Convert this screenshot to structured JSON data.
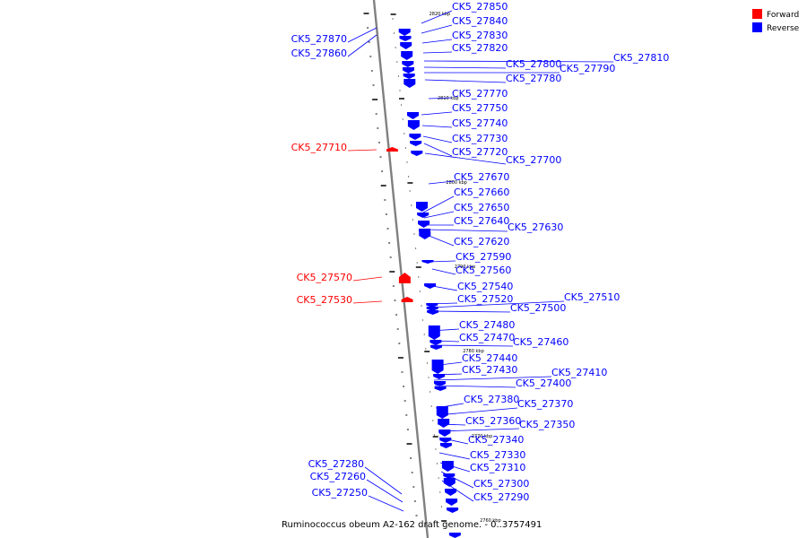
{
  "caption": "Ruminococcus obeum A2-162 draft genome. - 0..3757491",
  "colors": {
    "forward": "#ff0000",
    "reverse": "#0000ff",
    "backbone": "#808080"
  },
  "legend": [
    {
      "label": "Forward",
      "color": "#ff0000"
    },
    {
      "label": "Reverse",
      "color": "#0000ff"
    }
  ],
  "scale_labels": [
    "2820 kbp",
    "2810 kbp",
    "2800 kbp",
    "2790 kbp",
    "2780 kbp",
    "2770 kbp",
    "2760 kbp"
  ],
  "genes": [
    {
      "id": "CK5_27850",
      "strand": "reverse"
    },
    {
      "id": "CK5_27840",
      "strand": "reverse"
    },
    {
      "id": "CK5_27830",
      "strand": "reverse"
    },
    {
      "id": "CK5_27820",
      "strand": "reverse"
    },
    {
      "id": "CK5_27810",
      "strand": "reverse"
    },
    {
      "id": "CK5_27800",
      "strand": "reverse"
    },
    {
      "id": "CK5_27790",
      "strand": "reverse"
    },
    {
      "id": "CK5_27780",
      "strand": "reverse"
    },
    {
      "id": "CK5_27870",
      "strand": "reverse"
    },
    {
      "id": "CK5_27860",
      "strand": "reverse"
    },
    {
      "id": "CK5_27770",
      "strand": "reverse"
    },
    {
      "id": "CK5_27750",
      "strand": "reverse"
    },
    {
      "id": "CK5_27740",
      "strand": "reverse"
    },
    {
      "id": "CK5_27730",
      "strand": "reverse"
    },
    {
      "id": "CK5_27720",
      "strand": "reverse"
    },
    {
      "id": "CK5_27700",
      "strand": "reverse"
    },
    {
      "id": "CK5_27710",
      "strand": "forward"
    },
    {
      "id": "CK5_27670",
      "strand": "reverse"
    },
    {
      "id": "CK5_27660",
      "strand": "reverse"
    },
    {
      "id": "CK5_27650",
      "strand": "reverse"
    },
    {
      "id": "CK5_27640",
      "strand": "reverse"
    },
    {
      "id": "CK5_27630",
      "strand": "reverse"
    },
    {
      "id": "CK5_27620",
      "strand": "reverse"
    },
    {
      "id": "CK5_27590",
      "strand": "reverse"
    },
    {
      "id": "CK5_27560",
      "strand": "reverse"
    },
    {
      "id": "CK5_27570",
      "strand": "forward"
    },
    {
      "id": "CK5_27540",
      "strand": "reverse"
    },
    {
      "id": "CK5_27530",
      "strand": "forward"
    },
    {
      "id": "CK5_27520",
      "strand": "reverse"
    },
    {
      "id": "CK5_27510",
      "strand": "reverse"
    },
    {
      "id": "CK5_27500",
      "strand": "reverse"
    },
    {
      "id": "CK5_27480",
      "strand": "reverse"
    },
    {
      "id": "CK5_27470",
      "strand": "reverse"
    },
    {
      "id": "CK5_27460",
      "strand": "reverse"
    },
    {
      "id": "CK5_27440",
      "strand": "reverse"
    },
    {
      "id": "CK5_27430",
      "strand": "reverse"
    },
    {
      "id": "CK5_27410",
      "strand": "reverse"
    },
    {
      "id": "CK5_27400",
      "strand": "reverse"
    },
    {
      "id": "CK5_27380",
      "strand": "reverse"
    },
    {
      "id": "CK5_27370",
      "strand": "reverse"
    },
    {
      "id": "CK5_27360",
      "strand": "reverse"
    },
    {
      "id": "CK5_27350",
      "strand": "reverse"
    },
    {
      "id": "CK5_27340",
      "strand": "reverse"
    },
    {
      "id": "CK5_27330",
      "strand": "reverse"
    },
    {
      "id": "CK5_27310",
      "strand": "reverse"
    },
    {
      "id": "CK5_27300",
      "strand": "reverse"
    },
    {
      "id": "CK5_27290",
      "strand": "reverse"
    },
    {
      "id": "CK5_27280",
      "strand": "reverse"
    },
    {
      "id": "CK5_27260",
      "strand": "reverse"
    },
    {
      "id": "CK5_27250",
      "strand": "reverse"
    }
  ]
}
